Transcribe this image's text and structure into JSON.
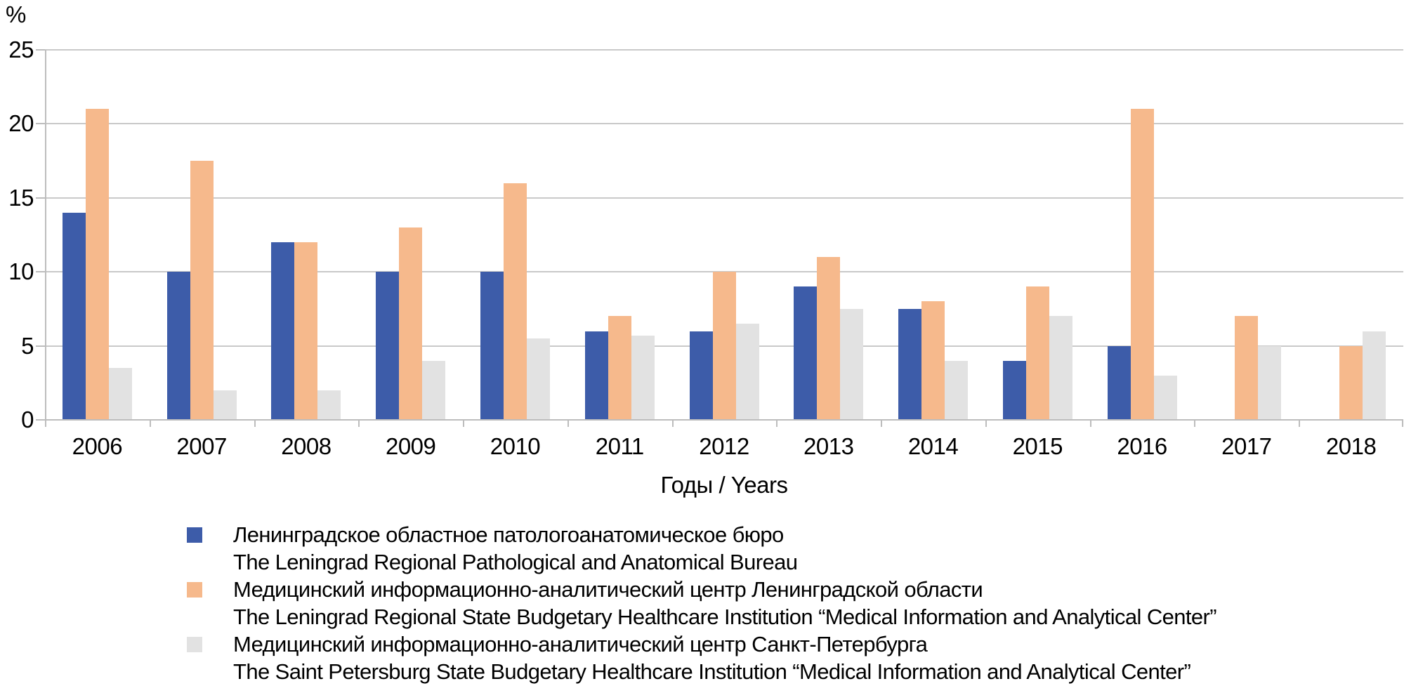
{
  "chart_data": {
    "type": "bar",
    "title": "",
    "ylabel": "%",
    "xlabel": "Годы / Years",
    "ylim": [
      0,
      25
    ],
    "yticks": [
      0,
      5,
      10,
      15,
      20,
      25
    ],
    "grid": true,
    "legend_position": "bottom-left",
    "categories": [
      "2006",
      "2007",
      "2008",
      "2009",
      "2010",
      "2011",
      "2012",
      "2013",
      "2014",
      "2015",
      "2016",
      "2017",
      "2018"
    ],
    "series": [
      {
        "name_ru": "Ленинградское областное патологоанатомическое бюро",
        "name_en": "The Leningrad Regional Pathological and Anatomical Bureau",
        "color": "#3d5ca9",
        "values": [
          14,
          10,
          12,
          10,
          10,
          6,
          6,
          9,
          7.5,
          4,
          5,
          0,
          0
        ]
      },
      {
        "name_ru": "Медицинский информационно-аналитический центр Ленинградской области",
        "name_en": "The Leningrad Regional State Budgetary Healthcare Institution “Medical Information and Analytical Center”",
        "color": "#f6b98c",
        "values": [
          21,
          17.5,
          12,
          13,
          16,
          7,
          10,
          11,
          8,
          9,
          21,
          7,
          5
        ]
      },
      {
        "name_ru": "Медицинский информационно-аналитический центр Санкт-Петербурга",
        "name_en": "The Saint Petersburg State Budgetary Healthcare Institution “Medical Information and Analytical Center”",
        "color": "#e2e2e2",
        "values": [
          3.5,
          2,
          2,
          4,
          5.5,
          5.7,
          6.5,
          7.5,
          4,
          7,
          3,
          5,
          6
        ]
      }
    ],
    "colors": {
      "gridline": "#c9c9c9",
      "axis": "#bdbdbd",
      "text": "#000000",
      "background": "#ffffff"
    }
  }
}
